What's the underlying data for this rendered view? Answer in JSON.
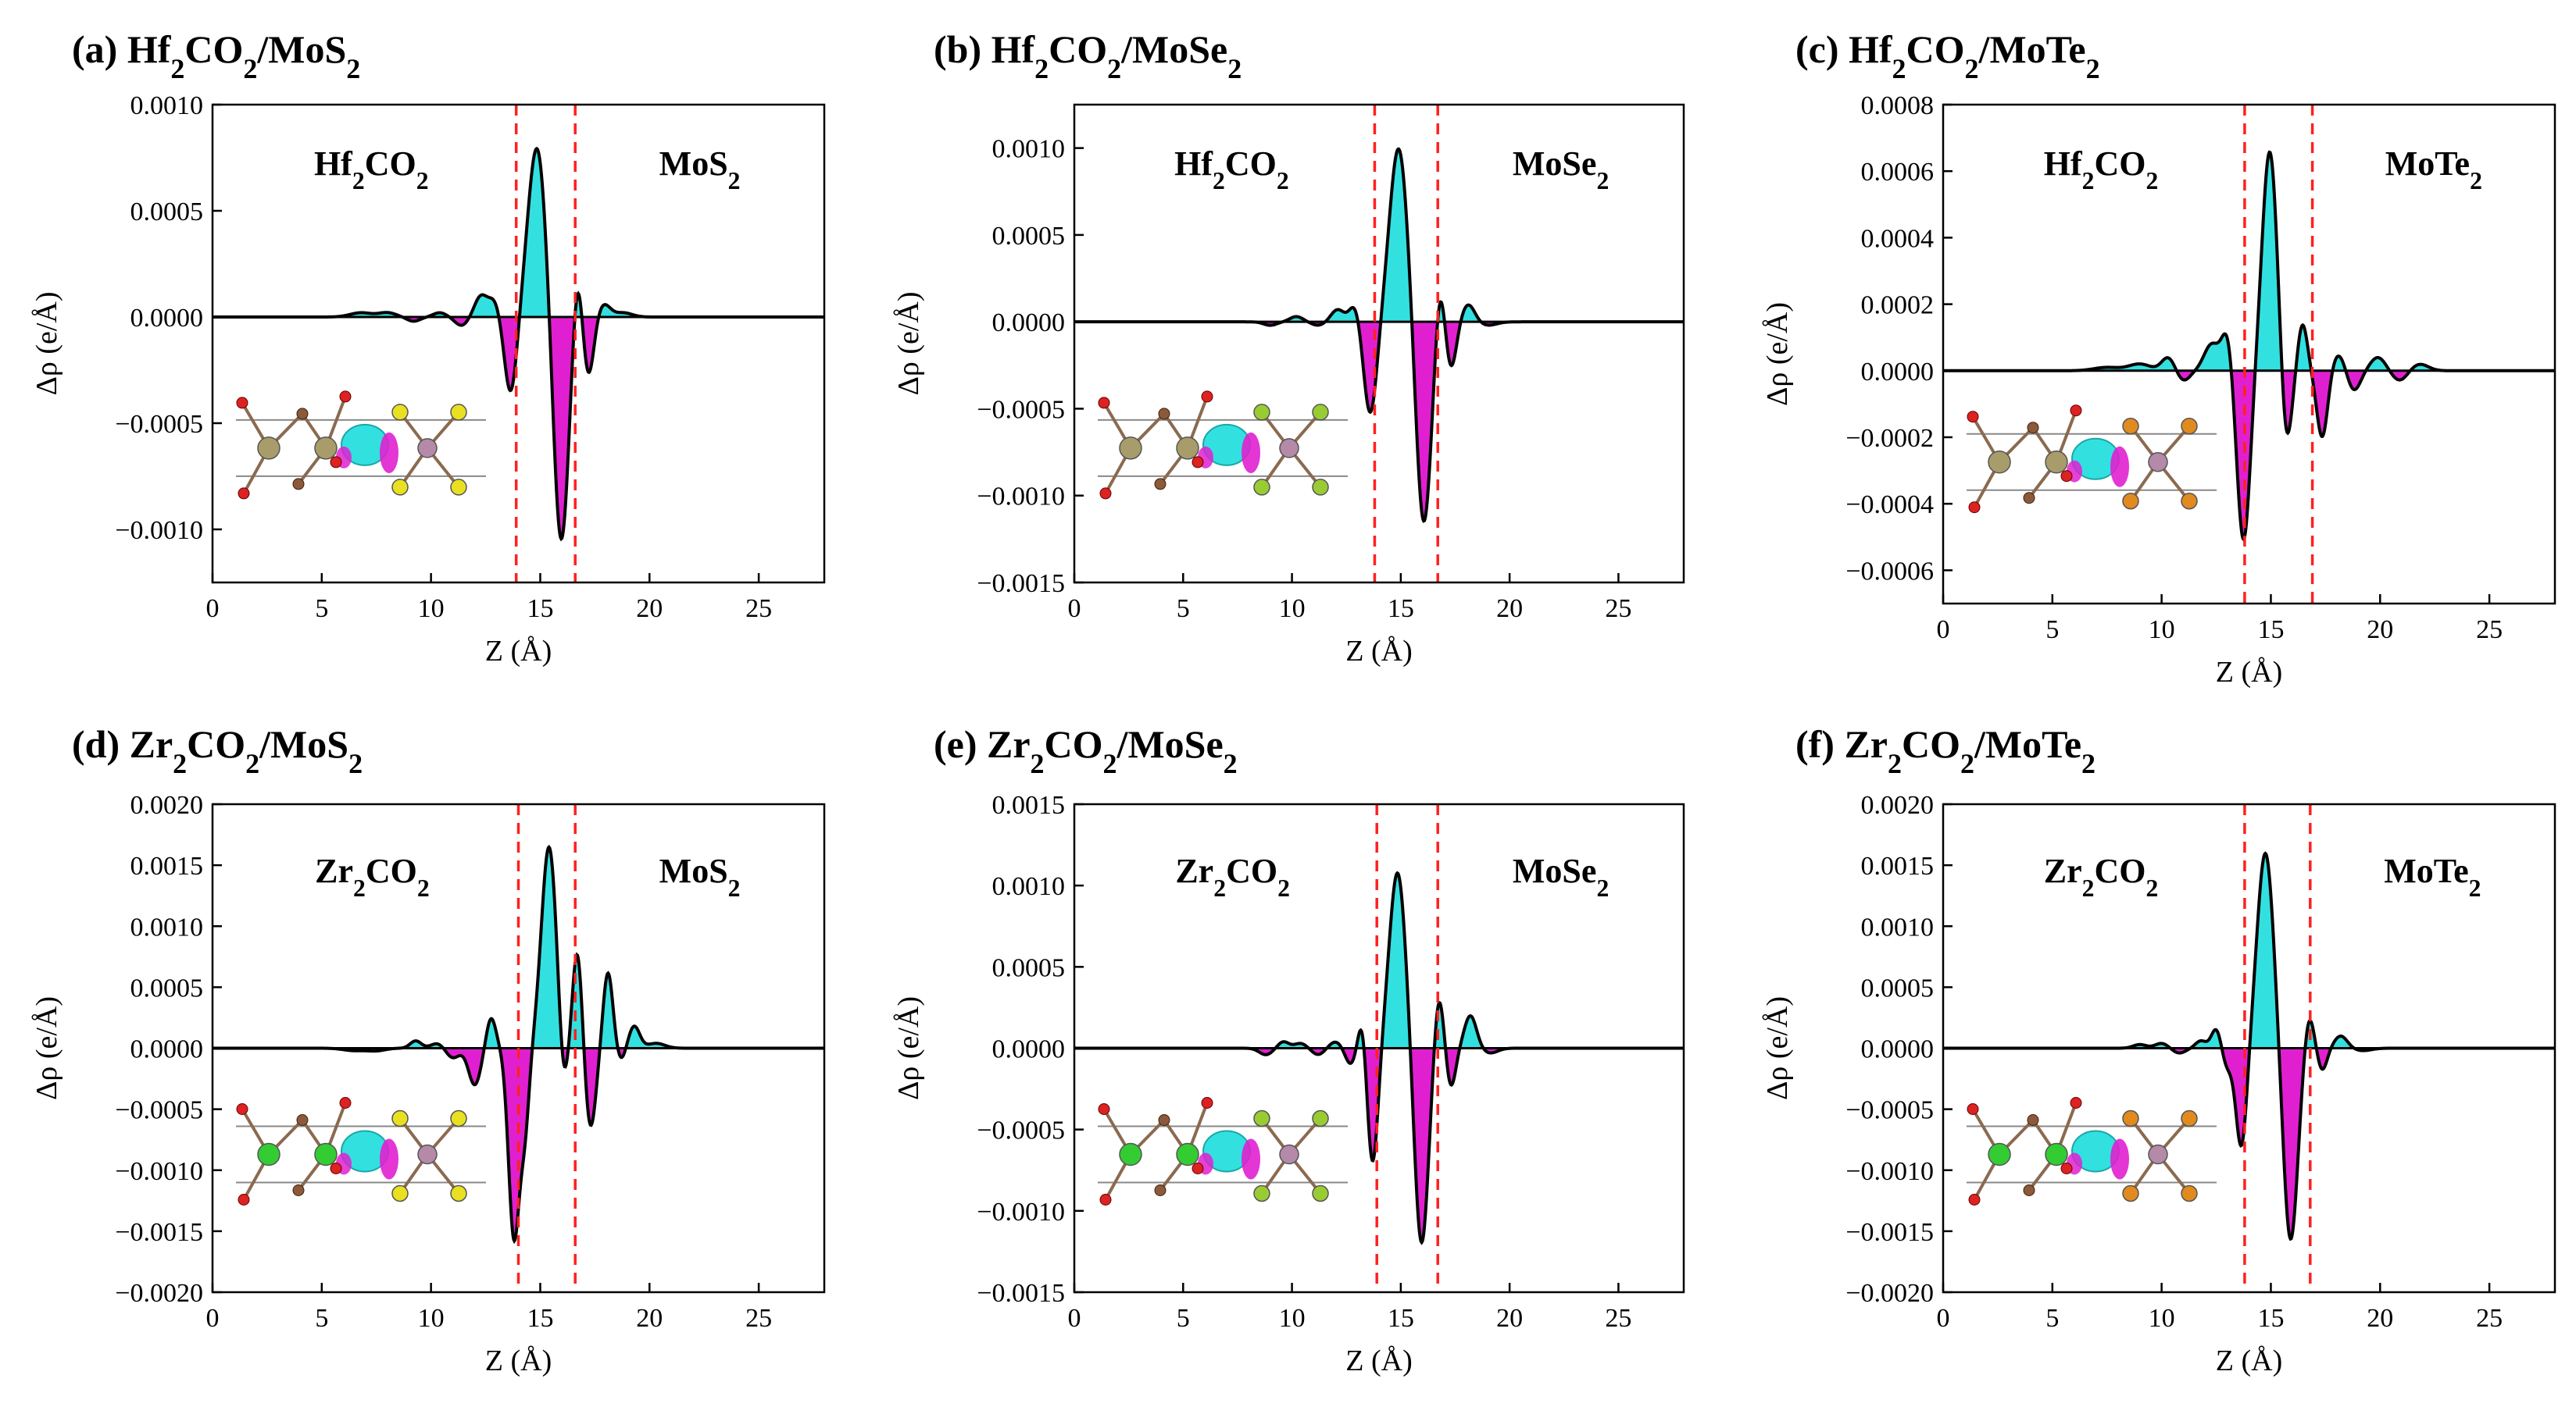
{
  "figure": {
    "colors": {
      "positive": "#33e0e0",
      "negative": "#e020d0",
      "curve": "#000000",
      "interface": "#ff2020",
      "frame": "#000000"
    },
    "atom_colors": {
      "hf": "#a89c6a",
      "zr": "#33cc33",
      "o": "#dd2222",
      "c": "#8b5a3a",
      "mo": "#b48aa8",
      "s": "#e8e020",
      "se": "#99cc33",
      "te": "#e08a20"
    }
  },
  "chart_data": [
    {
      "type": "area",
      "label": "(a)",
      "title_parts": [
        "Hf",
        "2",
        "CO",
        "2",
        "/MoS",
        "2"
      ],
      "xlabel": "Z (Å)",
      "ylabel": "Δρ (e/Å)",
      "xlim": [
        0,
        28
      ],
      "ylim": [
        -0.00125,
        0.001
      ],
      "xticks": [
        "0",
        "5",
        "10",
        "15",
        "20",
        "25"
      ],
      "yticks": [
        "0.0010",
        "0.0005",
        "0.0000",
        "−0.0005",
        "−0.0010"
      ],
      "ytick_values": [
        0.001,
        0.0005,
        0,
        -0.0005,
        -0.001
      ],
      "interfaces": [
        13.9,
        16.6
      ],
      "left_region": [
        "Hf",
        "2",
        "CO",
        "2"
      ],
      "right_region": [
        "MoS",
        "2"
      ],
      "metal": "hf",
      "chalcogen": "s",
      "peaks": [
        [
          6.8,
          2e-05,
          0.5
        ],
        [
          8.0,
          2e-05,
          0.4
        ],
        [
          9.2,
          -2e-05,
          0.3
        ],
        [
          10.4,
          2e-05,
          0.3
        ],
        [
          11.4,
          -4e-05,
          0.3
        ],
        [
          12.3,
          0.0001,
          0.3
        ],
        [
          12.9,
          7e-05,
          0.25
        ],
        [
          13.65,
          -0.00036,
          0.28
        ],
        [
          14.85,
          0.0008,
          0.42
        ],
        [
          15.95,
          -0.00107,
          0.35
        ],
        [
          16.7,
          0.00025,
          0.22
        ],
        [
          17.2,
          -0.00028,
          0.25
        ],
        [
          17.9,
          6e-05,
          0.3
        ],
        [
          18.8,
          2e-05,
          0.4
        ]
      ]
    },
    {
      "type": "area",
      "label": "(b)",
      "title_parts": [
        "Hf",
        "2",
        "CO",
        "2",
        "/MoSe",
        "2"
      ],
      "xlabel": "Z (Å)",
      "ylabel": "Δρ (e/Å)",
      "xlim": [
        0,
        28
      ],
      "ylim": [
        -0.0015,
        0.00125
      ],
      "xticks": [
        "0",
        "5",
        "10",
        "15",
        "20",
        "25"
      ],
      "yticks": [
        "0.0010",
        "0.0005",
        "0.0000",
        "−0.0005",
        "−0.0010",
        "−0.0015"
      ],
      "ytick_values": [
        0.001,
        0.0005,
        0,
        -0.0005,
        -0.001,
        -0.0015
      ],
      "interfaces": [
        13.8,
        16.7
      ],
      "left_region": [
        "Hf",
        "2",
        "CO",
        "2"
      ],
      "right_region": [
        "MoSe",
        "2"
      ],
      "metal": "hf",
      "chalcogen": "se",
      "peaks": [
        [
          9.0,
          -2e-05,
          0.3
        ],
        [
          10.2,
          3e-05,
          0.3
        ],
        [
          11.2,
          -2e-05,
          0.3
        ],
        [
          12.1,
          7e-05,
          0.3
        ],
        [
          12.9,
          0.0001,
          0.25
        ],
        [
          13.6,
          -0.00053,
          0.3
        ],
        [
          14.9,
          0.001,
          0.42
        ],
        [
          16.05,
          -0.00117,
          0.35
        ],
        [
          16.8,
          0.00026,
          0.22
        ],
        [
          17.3,
          -0.00027,
          0.25
        ],
        [
          18.1,
          0.0001,
          0.3
        ],
        [
          19.0,
          -2e-05,
          0.4
        ]
      ]
    },
    {
      "type": "area",
      "label": "(c)",
      "title_parts": [
        "Hf",
        "2",
        "CO",
        "2",
        "/MoTe",
        "2"
      ],
      "xlabel": "Z (Å)",
      "ylabel": "Δρ (e/Å)",
      "xlim": [
        0,
        28
      ],
      "ylim": [
        -0.0007,
        0.0008
      ],
      "xticks": [
        "0",
        "5",
        "10",
        "15",
        "20",
        "25"
      ],
      "yticks": [
        "0.0008",
        "0.0006",
        "0.0004",
        "0.0002",
        "0.0000",
        "−0.0002",
        "−0.0004",
        "−0.0006"
      ],
      "ytick_values": [
        0.0008,
        0.0006,
        0.0004,
        0.0002,
        0,
        -0.0002,
        -0.0004,
        -0.0006
      ],
      "interfaces": [
        13.8,
        16.9
      ],
      "left_region": [
        "Hf",
        "2",
        "CO",
        "2"
      ],
      "right_region": [
        "MoTe",
        "2"
      ],
      "metal": "hf",
      "chalcogen": "te",
      "peaks": [
        [
          7.5,
          1e-05,
          0.6
        ],
        [
          9.0,
          2e-05,
          0.5
        ],
        [
          10.3,
          4e-05,
          0.3
        ],
        [
          11.0,
          -3e-05,
          0.3
        ],
        [
          12.3,
          8e-05,
          0.35
        ],
        [
          13.0,
          0.00011,
          0.25
        ],
        [
          13.75,
          -0.00051,
          0.3
        ],
        [
          14.95,
          0.00066,
          0.35
        ],
        [
          15.7,
          -0.00024,
          0.25
        ],
        [
          16.45,
          0.00014,
          0.22
        ],
        [
          17.35,
          -0.0002,
          0.25
        ],
        [
          18.1,
          5e-05,
          0.3
        ],
        [
          18.8,
          -6e-05,
          0.3
        ],
        [
          19.9,
          4e-05,
          0.35
        ],
        [
          20.9,
          -3e-05,
          0.35
        ],
        [
          21.8,
          2e-05,
          0.4
        ]
      ]
    },
    {
      "type": "area",
      "label": "(d)",
      "title_parts": [
        "Zr",
        "2",
        "CO",
        "2",
        "/MoS",
        "2"
      ],
      "xlabel": "Z (Å)",
      "ylabel": "Δρ (e/Å)",
      "xlim": [
        0,
        28
      ],
      "ylim": [
        -0.002,
        0.002
      ],
      "xticks": [
        "0",
        "5",
        "10",
        "15",
        "20",
        "25"
      ],
      "yticks": [
        "0.0020",
        "0.0015",
        "0.0010",
        "0.0005",
        "0.0000",
        "−0.0005",
        "−0.0010",
        "−0.0015",
        "−0.0020"
      ],
      "ytick_values": [
        0.002,
        0.0015,
        0.001,
        0.0005,
        0,
        -0.0005,
        -0.001,
        -0.0015,
        -0.002
      ],
      "interfaces": [
        14.0,
        16.6
      ],
      "left_region": [
        "Zr",
        "2",
        "CO",
        "2"
      ],
      "right_region": [
        "MoS",
        "2"
      ],
      "metal": "zr",
      "chalcogen": "s",
      "peaks": [
        [
          6.5,
          -2e-05,
          0.5
        ],
        [
          7.5,
          -2e-05,
          0.4
        ],
        [
          9.3,
          6e-05,
          0.25
        ],
        [
          10.3,
          4e-05,
          0.3
        ],
        [
          11.0,
          -8e-05,
          0.3
        ],
        [
          12.0,
          -0.0003,
          0.28
        ],
        [
          12.75,
          0.00025,
          0.22
        ],
        [
          13.8,
          -0.00155,
          0.25
        ],
        [
          14.3,
          -0.0006,
          0.2
        ],
        [
          15.4,
          0.00165,
          0.35
        ],
        [
          16.05,
          -0.0004,
          0.2
        ],
        [
          16.7,
          0.0008,
          0.22
        ],
        [
          17.3,
          -0.00065,
          0.25
        ],
        [
          18.1,
          0.00062,
          0.22
        ],
        [
          18.7,
          -0.0001,
          0.2
        ],
        [
          19.3,
          0.00018,
          0.25
        ],
        [
          20.3,
          4e-05,
          0.4
        ]
      ]
    },
    {
      "type": "area",
      "label": "(e)",
      "title_parts": [
        "Zr",
        "2",
        "CO",
        "2",
        "/MoSe",
        "2"
      ],
      "xlabel": "Z (Å)",
      "ylabel": "Δρ (e/Å)",
      "xlim": [
        0,
        28
      ],
      "ylim": [
        -0.0015,
        0.0015
      ],
      "xticks": [
        "0",
        "5",
        "10",
        "15",
        "20",
        "25"
      ],
      "yticks": [
        "0.0015",
        "0.0010",
        "0.0005",
        "0.0000",
        "−0.0005",
        "−0.0010",
        "−0.0015"
      ],
      "ytick_values": [
        0.0015,
        0.001,
        0.0005,
        0,
        -0.0005,
        -0.001,
        -0.0015
      ],
      "interfaces": [
        13.9,
        16.7
      ],
      "left_region": [
        "Zr",
        "2",
        "CO",
        "2"
      ],
      "right_region": [
        "MoSe",
        "2"
      ],
      "metal": "zr",
      "chalcogen": "se",
      "peaks": [
        [
          8.8,
          -4e-05,
          0.3
        ],
        [
          9.6,
          4e-05,
          0.25
        ],
        [
          10.4,
          3e-05,
          0.3
        ],
        [
          11.2,
          -4e-05,
          0.3
        ],
        [
          12.0,
          4e-05,
          0.3
        ],
        [
          12.7,
          -0.0001,
          0.25
        ],
        [
          13.25,
          0.00022,
          0.2
        ],
        [
          13.7,
          -0.00072,
          0.25
        ],
        [
          14.85,
          0.00108,
          0.38
        ],
        [
          15.95,
          -0.00121,
          0.32
        ],
        [
          16.75,
          0.00034,
          0.22
        ],
        [
          17.3,
          -0.00024,
          0.22
        ],
        [
          18.2,
          0.0002,
          0.28
        ],
        [
          19.1,
          -3e-05,
          0.35
        ]
      ]
    },
    {
      "type": "area",
      "label": "(f)",
      "title_parts": [
        "Zr",
        "2",
        "CO",
        "2",
        "/MoTe",
        "2"
      ],
      "xlabel": "Z (Å)",
      "ylabel": "Δρ (e/Å)",
      "xlim": [
        0,
        28
      ],
      "ylim": [
        -0.002,
        0.002
      ],
      "xticks": [
        "0",
        "5",
        "10",
        "15",
        "20",
        "25"
      ],
      "yticks": [
        "0.0020",
        "0.0015",
        "0.0010",
        "0.0005",
        "0.0000",
        "−0.0005",
        "−0.0010",
        "−0.0015",
        "−0.0020"
      ],
      "ytick_values": [
        0.002,
        0.0015,
        0.001,
        0.0005,
        0,
        -0.0005,
        -0.001,
        -0.0015,
        -0.002
      ],
      "interfaces": [
        13.8,
        16.8
      ],
      "left_region": [
        "Zr",
        "2",
        "CO",
        "2"
      ],
      "right_region": [
        "MoTe",
        "2"
      ],
      "metal": "zr",
      "chalcogen": "te",
      "peaks": [
        [
          9.0,
          3e-05,
          0.3
        ],
        [
          10.0,
          4e-05,
          0.3
        ],
        [
          10.8,
          -4e-05,
          0.3
        ],
        [
          11.8,
          6e-05,
          0.25
        ],
        [
          12.5,
          0.00016,
          0.22
        ],
        [
          13.0,
          -0.00015,
          0.22
        ],
        [
          13.65,
          -0.00082,
          0.25
        ],
        [
          14.75,
          0.0016,
          0.38
        ],
        [
          15.9,
          -0.00158,
          0.33
        ],
        [
          16.75,
          0.00028,
          0.22
        ],
        [
          17.35,
          -0.00018,
          0.22
        ],
        [
          18.2,
          0.0001,
          0.3
        ],
        [
          19.2,
          -2e-05,
          0.4
        ]
      ]
    }
  ]
}
